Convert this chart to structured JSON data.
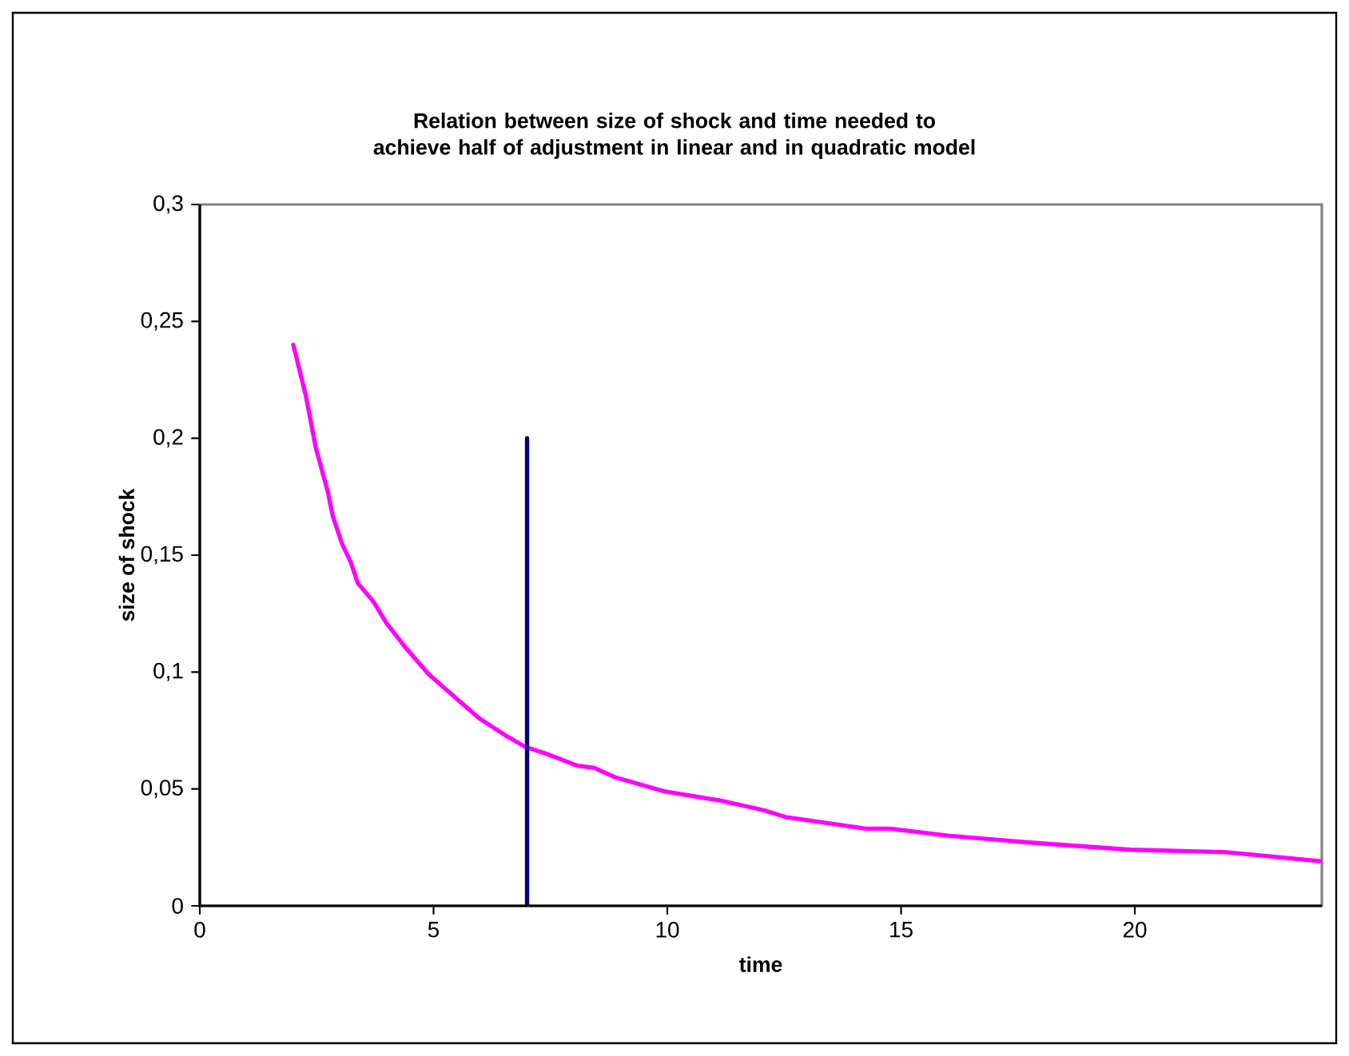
{
  "chart_data": {
    "type": "line",
    "title": "Relation between size of shock and time needed to achieve half of adjustment in linear and in quadratic model",
    "xlabel": "time",
    "ylabel": "size of shock",
    "xlim": [
      0,
      24
    ],
    "xticks": [
      0,
      5,
      10,
      15,
      20
    ],
    "ylim": [
      0,
      0.3
    ],
    "yticks": [
      0,
      {
        "value": 0.05,
        "label": "0,05"
      },
      {
        "value": 0.1,
        "label": "0,1"
      },
      {
        "value": 0.15,
        "label": "0,15"
      },
      {
        "value": 0.2,
        "label": "0,2"
      },
      {
        "value": 0.25,
        "label": "0,25"
      },
      {
        "value": 0.3,
        "label": "0,3"
      }
    ],
    "series": [
      {
        "color": "#ff00ff",
        "x": [
          2.0,
          2.27,
          2.48,
          2.74,
          2.84,
          3.04,
          3.23,
          3.38,
          3.72,
          3.99,
          4.42,
          4.9,
          5.47,
          5.99,
          6.53,
          6.96,
          7.42,
          8.07,
          8.44,
          8.88,
          9.93,
          11.15,
          12.04,
          12.53,
          14.24,
          14.76,
          16.0,
          17.8,
          19.9,
          21.9,
          23.0,
          24.0
        ],
        "values": [
          0.24,
          0.218,
          0.196,
          0.177,
          0.167,
          0.155,
          0.147,
          0.138,
          0.13,
          0.121,
          0.11,
          0.099,
          0.089,
          0.08,
          0.073,
          0.068,
          0.065,
          0.06,
          0.059,
          0.055,
          0.049,
          0.045,
          0.041,
          0.038,
          0.033,
          0.033,
          0.03,
          0.027,
          0.024,
          0.023,
          0.021,
          0.019
        ]
      },
      {
        "color": "#000080",
        "x": [
          7,
          7
        ],
        "values": [
          0,
          0.2
        ]
      }
    ]
  }
}
